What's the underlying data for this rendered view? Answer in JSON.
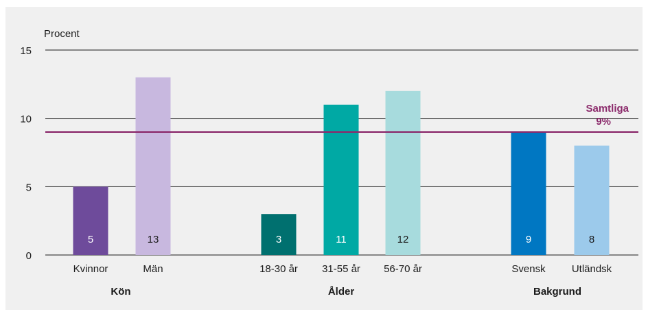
{
  "chart_data": {
    "type": "bar",
    "ylabel": "Procent",
    "ylim": [
      0,
      15
    ],
    "yticks": [
      0,
      5,
      10,
      15
    ],
    "grid": true,
    "reference_line": {
      "value": 9,
      "label_line1": "Samtliga",
      "label_line2": "9%",
      "color": "#8b2a6b"
    },
    "groups": [
      {
        "label": "Kön",
        "bars": [
          {
            "category": "Kvinnor",
            "value": 5,
            "label": "5",
            "color": "#6e4b9b",
            "label_dark": false
          },
          {
            "category": "Män",
            "value": 13,
            "label": "13",
            "color": "#c8b8df",
            "label_dark": true
          }
        ]
      },
      {
        "label": "Ålder",
        "bars": [
          {
            "category": "18-30 år",
            "value": 3,
            "label": "3",
            "color": "#00706f",
            "label_dark": false
          },
          {
            "category": "31-55 år",
            "value": 11,
            "label": "11",
            "color": "#00a9a4",
            "label_dark": false
          },
          {
            "category": "56-70 år",
            "value": 12,
            "label": "12",
            "color": "#a7dbdd",
            "label_dark": true
          }
        ]
      },
      {
        "label": "Bakgrund",
        "bars": [
          {
            "category": "Svensk",
            "value": 9,
            "label": "9",
            "color": "#0077c2",
            "label_dark": false
          },
          {
            "category": "Utländsk",
            "value": 8,
            "label": "8",
            "color": "#9ccaeb",
            "label_dark": true
          }
        ]
      }
    ]
  }
}
